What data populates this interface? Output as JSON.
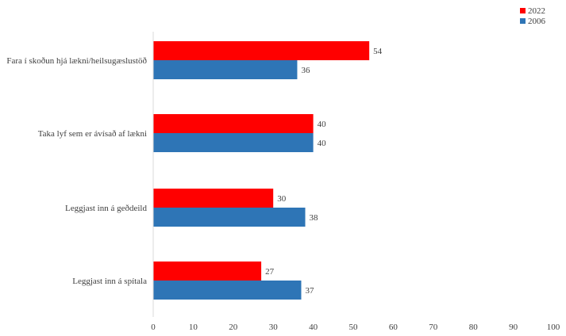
{
  "chart_data": {
    "type": "bar",
    "orientation": "horizontal",
    "categories": [
      "Fara í skoðun hjá lækni/heilsugæslustöð",
      "Taka lyf sem er ávísað af lækni",
      "Leggjast inn á geðdeild",
      "Leggjast inn á spítala"
    ],
    "series": [
      {
        "name": "2022",
        "color": "#ff0000",
        "values": [
          54,
          40,
          30,
          27
        ]
      },
      {
        "name": "2006",
        "color": "#2e75b6",
        "values": [
          36,
          40,
          38,
          37
        ]
      }
    ],
    "xlim": [
      0,
      100
    ],
    "xticks": [
      "0",
      "10",
      "20",
      "30",
      "40",
      "50",
      "60",
      "70",
      "80",
      "90",
      "100"
    ],
    "data_labels": true,
    "grid": false,
    "legend_position": "top-right"
  }
}
